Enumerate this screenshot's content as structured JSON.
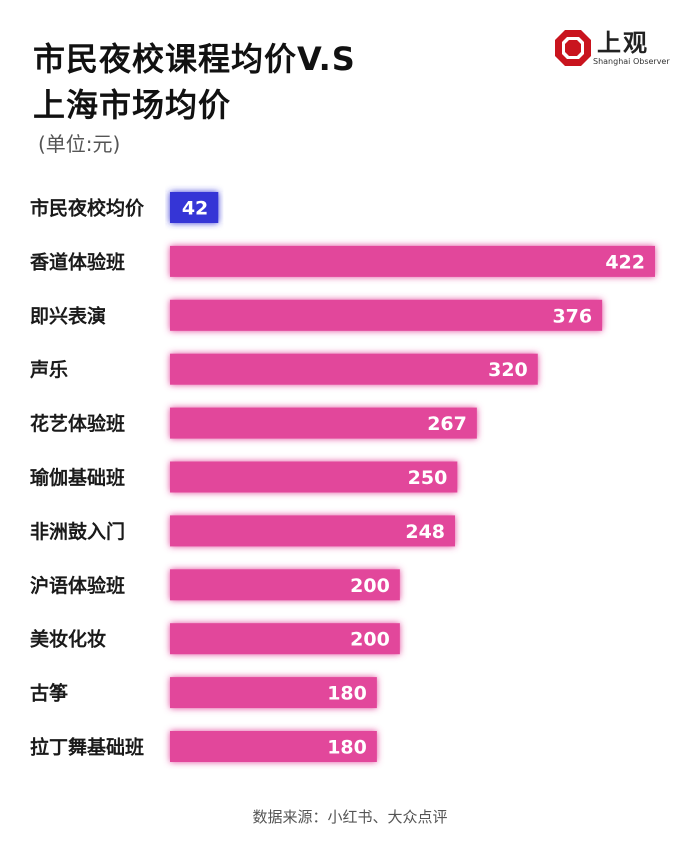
{
  "header": {
    "title_line1": "市民夜校课程均价V.S",
    "title_line2": "上海市场均价",
    "unit": "(单位:元)"
  },
  "logo": {
    "name": "上观",
    "subtitle": "Shanghai Observer"
  },
  "chart_data": {
    "type": "bar",
    "orientation": "horizontal",
    "categories": [
      "市民夜校均价",
      "香道体验班",
      "即兴表演",
      "声乐",
      "花艺体验班",
      "瑜伽基础班",
      "非洲鼓入门",
      "沪语体验班",
      "美妆化妆",
      "古筝",
      "拉丁舞基础班"
    ],
    "values": [
      42,
      422,
      376,
      320,
      267,
      250,
      248,
      200,
      200,
      180,
      180
    ],
    "colors": [
      "#3534d6",
      "#e2479b",
      "#e2479b",
      "#e2479b",
      "#e2479b",
      "#e2479b",
      "#e2479b",
      "#e2479b",
      "#e2479b",
      "#e2479b",
      "#e2479b"
    ],
    "glow_color": "#ff5fc0",
    "xlim": [
      0,
      422
    ],
    "grid": false,
    "legend": "none",
    "data_labels": "inside-end"
  },
  "footer": {
    "source": "数据来源：小红书、大众点评"
  },
  "colors": {
    "logo_red": "#c9141e",
    "title": "#111111"
  }
}
